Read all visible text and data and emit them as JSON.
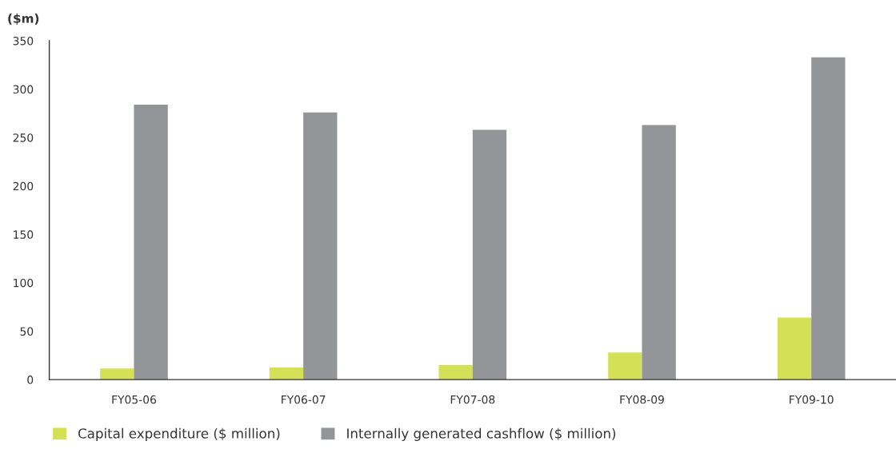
{
  "chart_data": {
    "type": "bar",
    "ylabel": "($m)",
    "categories": [
      "FY05-06",
      "FY06-07",
      "FY07-08",
      "FY08-09",
      "FY09-10"
    ],
    "series": [
      {
        "name": "Capital expenditure ($ million)",
        "color": "#d4e157",
        "values": [
          11.5,
          12.5,
          15,
          28,
          64
        ]
      },
      {
        "name": "Internally generated cashflow ($ million)",
        "color": "#939598",
        "values": [
          284,
          276,
          258,
          263,
          333
        ]
      }
    ],
    "ylim": [
      0,
      350
    ],
    "yticks": [
      0,
      50,
      100,
      150,
      200,
      250,
      300,
      350
    ],
    "grid": false,
    "legend": "bottom"
  }
}
